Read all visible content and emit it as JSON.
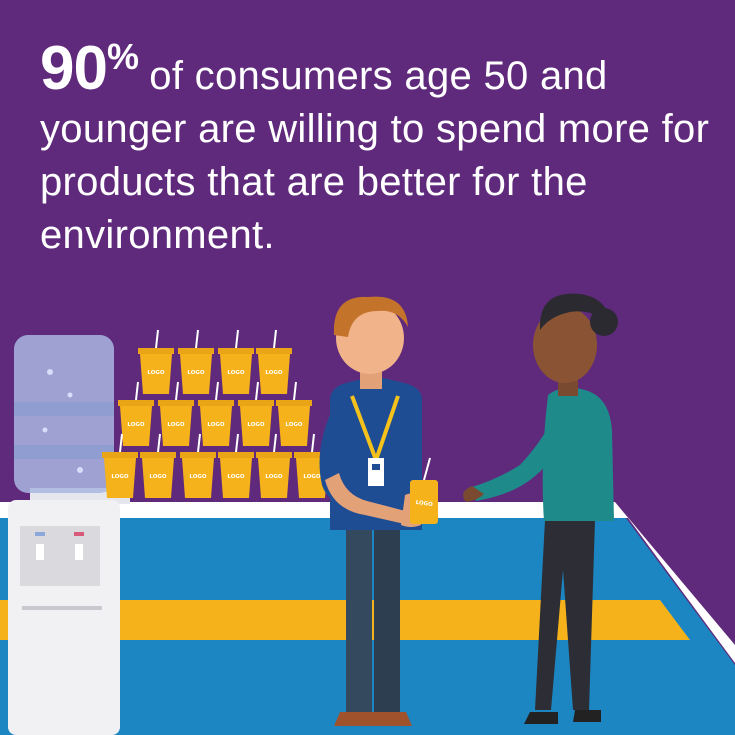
{
  "headline": {
    "stat_value": "90",
    "stat_symbol": "%",
    "text": "of consumers age 50 and younger are willing to spend more for products that are better for the environment."
  },
  "scene": {
    "cup_logo_text": "LOGO",
    "held_cup_logo_text": "LOGO"
  },
  "colors": {
    "background": "#5f2a7c",
    "floor_blue": "#1c86c2",
    "floor_yellow": "#f6b21b",
    "cup_yellow": "#f6b21b",
    "shirt_navy": "#1f4d93",
    "shirt_teal": "#1e8a8a"
  }
}
